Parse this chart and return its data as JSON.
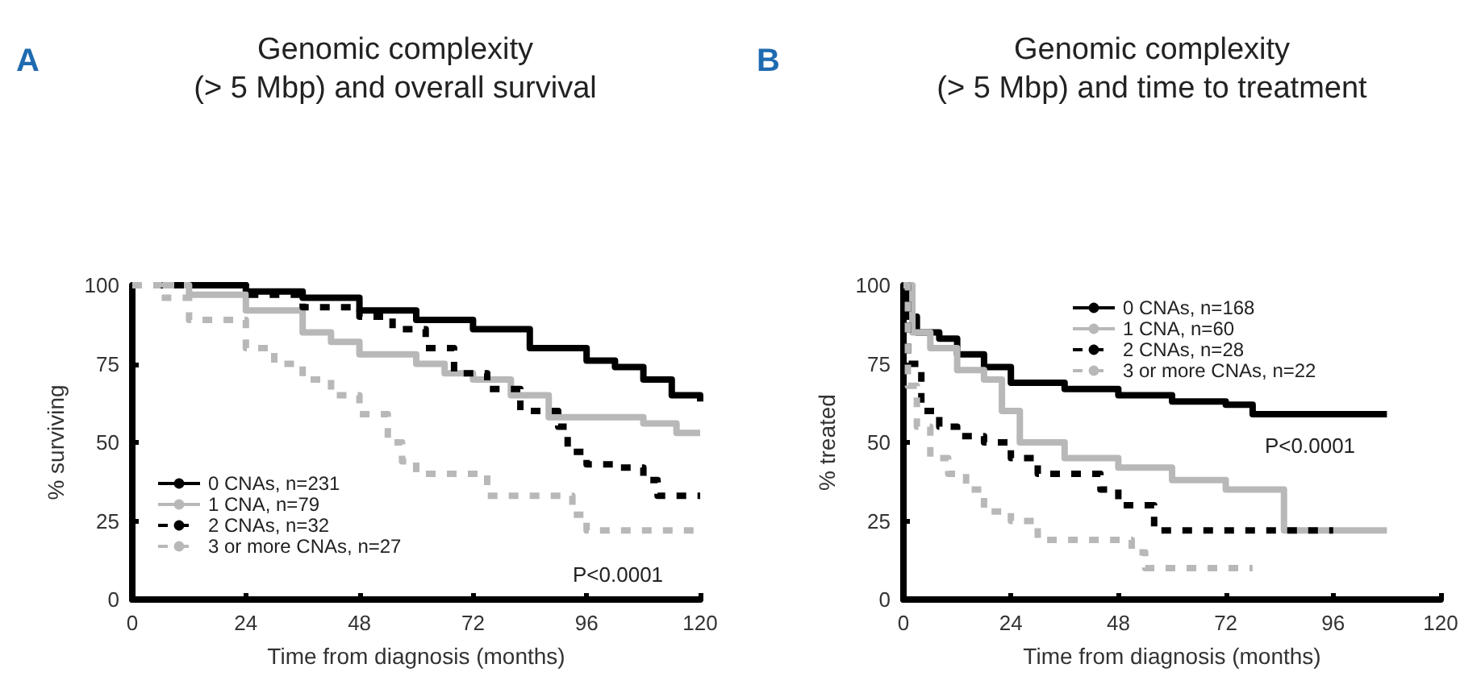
{
  "chart_data": [
    {
      "type": "step",
      "title": "Genomic complexity\n(> 5 Mbp) and overall survival",
      "xlabel": "Time from diagnosis (months)",
      "ylabel": "% surviving",
      "annotations": [
        "A",
        "P<0.0001"
      ],
      "xlim": [
        0,
        120
      ],
      "xticks": [
        0,
        24,
        48,
        72,
        96,
        120
      ],
      "ylim": [
        0,
        100
      ],
      "yticks": [
        0,
        25,
        50,
        75,
        100
      ],
      "grid": false,
      "legend": "bottom left",
      "marker": "none",
      "series": [
        {
          "name": "0 CNAs, n=231",
          "color": "#000000",
          "line_style": "solid",
          "x": [
            10,
            24,
            36,
            48,
            60,
            72,
            84,
            96,
            102,
            108,
            114,
            120
          ],
          "values": [
            100,
            98,
            96,
            92,
            89,
            86,
            80,
            76,
            74,
            70,
            65,
            63
          ]
        },
        {
          "name": "1 CNA, n=79",
          "color": "#b8b8b8",
          "line_style": "solid",
          "x": [
            5,
            12,
            24,
            36,
            42,
            48,
            60,
            66,
            72,
            80,
            88,
            108,
            115,
            120
          ],
          "values": [
            100,
            97,
            92,
            85,
            82,
            78,
            75,
            72,
            70,
            65,
            58,
            56,
            53,
            53
          ]
        },
        {
          "name": "2 CNAs, n=32",
          "color": "#000000",
          "line_style": "dashed",
          "x": [
            0,
            24,
            36,
            48,
            55,
            62,
            68,
            75,
            82,
            90,
            92,
            96,
            102,
            108,
            111,
            120
          ],
          "values": [
            100,
            97,
            93,
            90,
            86,
            80,
            72,
            67,
            60,
            55,
            47,
            43,
            42,
            38,
            33,
            33
          ]
        },
        {
          "name": "3 or more CNAs, n=27",
          "color": "#b8b8b8",
          "line_style": "dashed",
          "x": [
            0,
            6,
            12,
            24,
            30,
            36,
            42,
            48,
            54,
            57,
            60,
            75,
            93,
            96,
            120
          ],
          "values": [
            100,
            96,
            89,
            80,
            75,
            70,
            65,
            59,
            50,
            44,
            40,
            33,
            27,
            22,
            22
          ]
        }
      ]
    },
    {
      "type": "step",
      "title": "Genomic complexity\n(> 5 Mbp) and time to treatment",
      "xlabel": "Time from diagnosis (months)",
      "ylabel": "% treated",
      "annotations": [
        "B",
        "P<0.0001"
      ],
      "xlim": [
        0,
        120
      ],
      "xticks": [
        0,
        24,
        48,
        72,
        96,
        120
      ],
      "ylim": [
        0,
        100
      ],
      "yticks": [
        0,
        25,
        50,
        75,
        100
      ],
      "grid": false,
      "legend": "top right",
      "marker": "none",
      "series": [
        {
          "name": "0 CNAs, n=168",
          "color": "#000000",
          "line_style": "solid",
          "x": [
            0,
            1,
            3,
            8,
            12,
            18,
            24,
            36,
            48,
            60,
            72,
            78,
            108
          ],
          "values": [
            100,
            90,
            85,
            83,
            78,
            74,
            69,
            67,
            65,
            63,
            62,
            59,
            59
          ]
        },
        {
          "name": "1 CNA, n=60",
          "color": "#b8b8b8",
          "line_style": "solid",
          "x": [
            0,
            2,
            6,
            12,
            18,
            22,
            26,
            36,
            48,
            60,
            72,
            85,
            108
          ],
          "values": [
            100,
            85,
            80,
            73,
            70,
            60,
            50,
            45,
            42,
            38,
            35,
            22,
            22
          ]
        },
        {
          "name": "2 CNAs, n=28",
          "color": "#000000",
          "line_style": "dashed",
          "x": [
            0,
            1,
            4,
            8,
            12,
            18,
            24,
            30,
            44,
            48,
            56,
            96
          ],
          "values": [
            100,
            75,
            60,
            55,
            52,
            50,
            45,
            40,
            35,
            30,
            22,
            22
          ]
        },
        {
          "name": "3 or more CNAs, n=22",
          "color": "#b8b8b8",
          "line_style": "dashed",
          "x": [
            0,
            1,
            3,
            6,
            10,
            14,
            18,
            24,
            30,
            51,
            54,
            78
          ],
          "values": [
            100,
            68,
            55,
            45,
            40,
            35,
            28,
            25,
            19,
            15,
            10,
            10
          ]
        }
      ]
    }
  ]
}
